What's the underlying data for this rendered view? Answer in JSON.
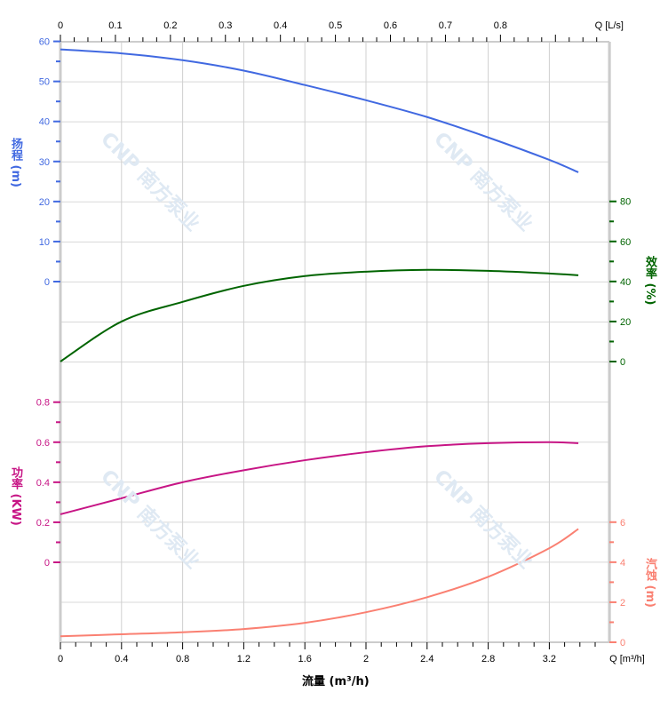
{
  "watermark": "CNP 南方泵业",
  "chart_data": {
    "type": "line",
    "xlabel": "流量 (m³/h)",
    "x_unit_label": "Q [m³/h]",
    "top_axis_label": "Q [L/s]",
    "xlim": [
      0,
      3.6
    ],
    "x_ticks": [
      "0",
      "0.4",
      "0.8",
      "1.2",
      "1.6",
      "2",
      "2.4",
      "2.8",
      "3.2"
    ],
    "top_ticks": [
      "0",
      "0.1",
      "0.2",
      "0.3",
      "0.4",
      "0.5",
      "0.6",
      "0.7",
      "0.8"
    ],
    "grid": true,
    "x": [
      0,
      0.4,
      0.8,
      1.2,
      1.6,
      2.0,
      2.4,
      2.8,
      3.2,
      3.39
    ],
    "series": [
      {
        "key": "head",
        "label": "扬程 (m)",
        "color": "#4169e1",
        "ylim": [
          0,
          60
        ],
        "ticks": [
          "0",
          "10",
          "20",
          "30",
          "40",
          "50",
          "60"
        ],
        "values": [
          58,
          57,
          55.3,
          52.7,
          49.1,
          45.3,
          41.1,
          36,
          30.4,
          27.3
        ]
      },
      {
        "key": "eff",
        "label": "效率 (%)",
        "color": "#006400",
        "ylim": [
          0,
          80
        ],
        "ticks": [
          "0",
          "20",
          "40",
          "60",
          "80"
        ],
        "values": [
          0,
          20,
          29.8,
          37.8,
          42.7,
          44.9,
          45.8,
          45.3,
          44,
          43.1
        ]
      },
      {
        "key": "power",
        "label": "功率 (KW)",
        "color": "#c71585",
        "ylim": [
          0,
          0.8
        ],
        "ticks": [
          "0",
          "0.2",
          "0.4",
          "0.6",
          "0.8"
        ],
        "values": [
          0.24,
          0.32,
          0.4,
          0.46,
          0.51,
          0.55,
          0.58,
          0.595,
          0.6,
          0.595
        ]
      },
      {
        "key": "npsh",
        "label": "汽蚀 (m)",
        "color": "#fa8072",
        "ylim": [
          0,
          6
        ],
        "ticks": [
          "0",
          "2",
          "4",
          "6"
        ],
        "values": [
          0.3,
          0.4,
          0.5,
          0.66,
          0.97,
          1.5,
          2.25,
          3.27,
          4.7,
          5.66
        ]
      }
    ]
  }
}
